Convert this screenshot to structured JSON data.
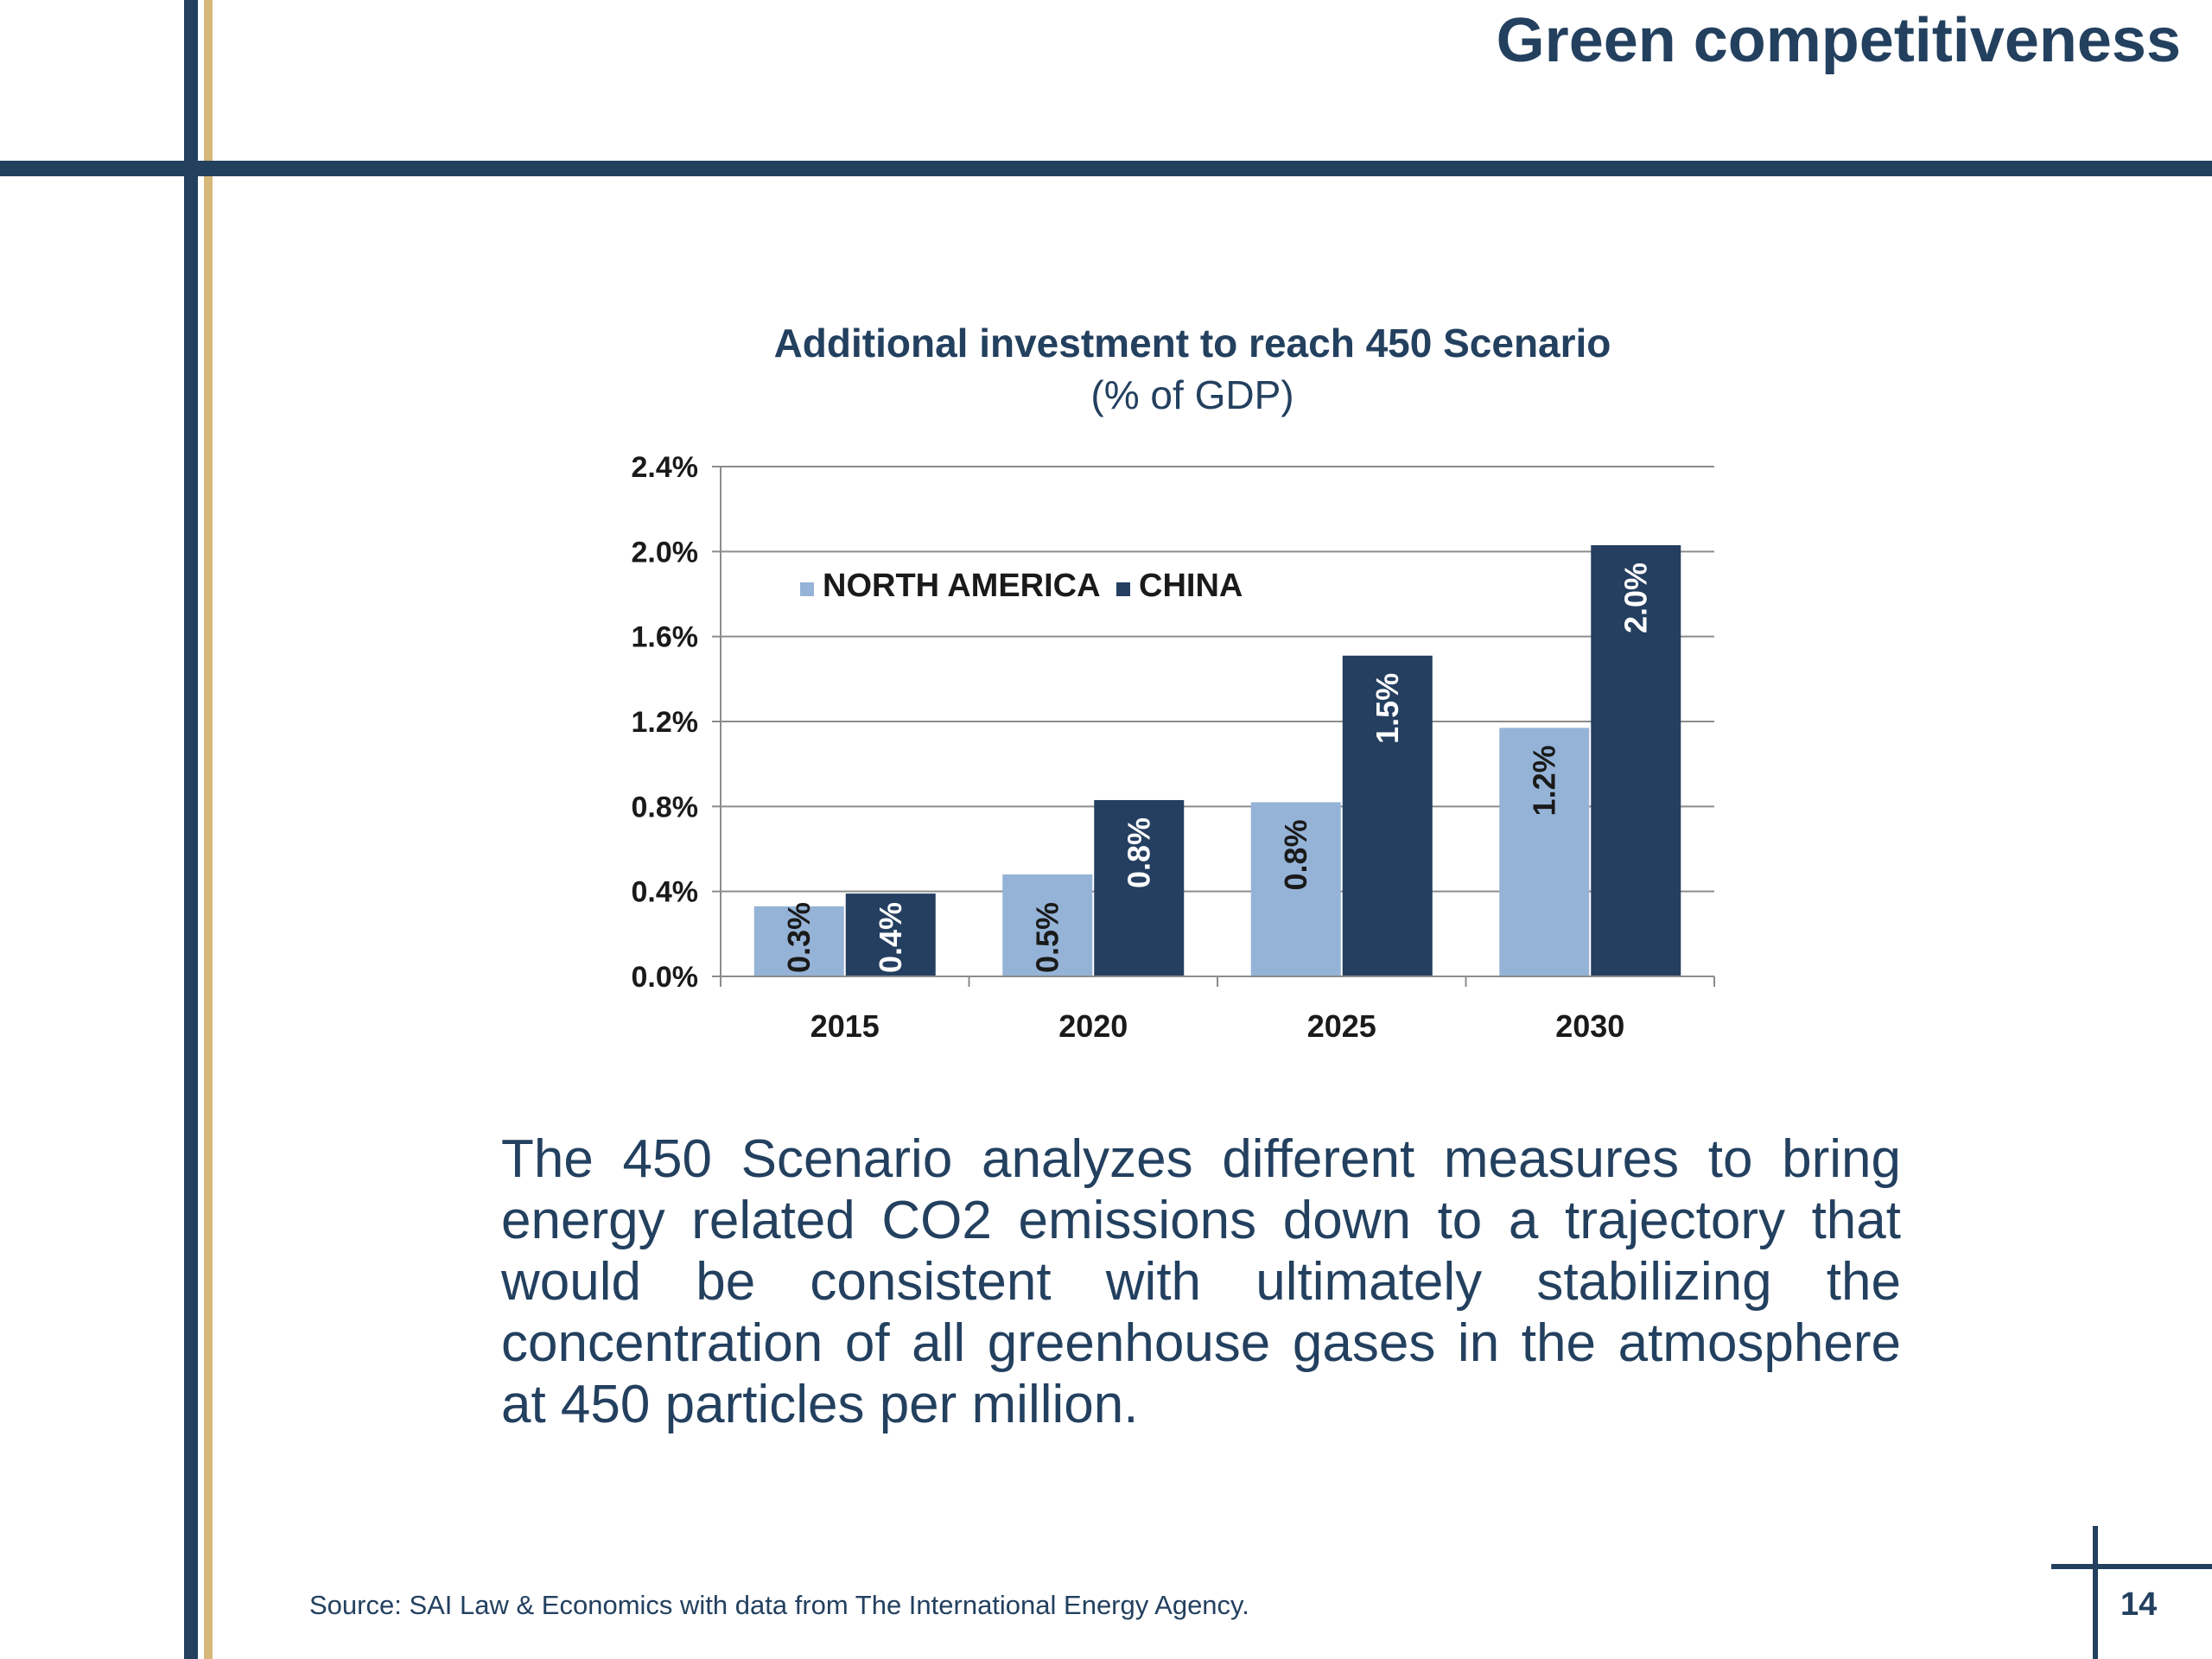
{
  "slide": {
    "title": "Green competitiveness",
    "body_text": "The 450 Scenario analyzes different measures to bring energy related CO2 emissions down to a trajectory that would be consistent with ultimately stabilizing the concentration of all greenhouse gases in the atmosphere at 450 particles per million.",
    "source": "Source: SAI Law & Economics with data from  The International Energy Agency.",
    "page_number": "14"
  },
  "colors": {
    "dark_blue": "#23405f",
    "gold": "#d6b87a",
    "north_america": "#95b3d7",
    "china": "#243f60"
  },
  "chart_data": {
    "type": "bar",
    "title": "Additional investment to reach 450 Scenario",
    "subtitle": "(% of GDP)",
    "categories": [
      "2015",
      "2020",
      "2025",
      "2030"
    ],
    "series": [
      {
        "name": "NORTH AMERICA",
        "values": [
          0.33,
          0.48,
          0.82,
          1.17
        ],
        "labels": [
          "0.3%",
          "0.5%",
          "0.8%",
          "1.2%"
        ],
        "color": "#95b3d7",
        "label_color": "#1a1a1a"
      },
      {
        "name": "CHINA",
        "values": [
          0.39,
          0.83,
          1.51,
          2.03
        ],
        "labels": [
          "0.4%",
          "0.8%",
          "1.5%",
          "2.0%"
        ],
        "color": "#243f60",
        "label_color": "#ffffff"
      }
    ],
    "ylim": [
      0,
      2.4
    ],
    "yticks": [
      0.0,
      0.4,
      0.8,
      1.2,
      1.6,
      2.0,
      2.4
    ],
    "ytick_labels": [
      "0.0%",
      "0.4%",
      "0.8%",
      "1.2%",
      "1.6%",
      "2.0%",
      "2.4%"
    ],
    "grid": true,
    "legend": "top-left inside plot",
    "xlabel": "",
    "ylabel": ""
  }
}
